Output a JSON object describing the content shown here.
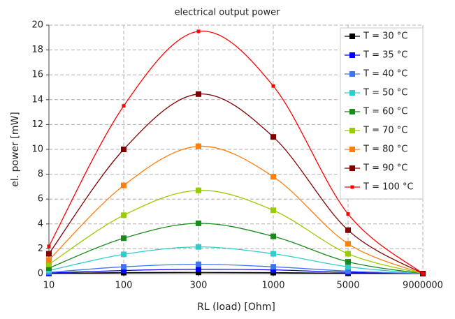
{
  "chart_data": {
    "type": "line",
    "title": "electrical output power",
    "x_label": "RL (load) [Ohm]",
    "y_label": "el. power [mW]",
    "categories": [
      "10",
      "100",
      "300",
      "1000",
      "5000",
      "9000000"
    ],
    "ylim": [
      0,
      20
    ],
    "yticks": [
      0,
      2,
      4,
      6,
      8,
      10,
      12,
      14,
      16,
      18,
      20
    ],
    "grid": true,
    "legend": "upper right",
    "series": [
      {
        "name": "T = 30 °C",
        "color": "#000000",
        "values": [
          0.02,
          0.08,
          0.1,
          0.08,
          0.03,
          0
        ]
      },
      {
        "name": "T = 35 °C",
        "color": "#0000ff",
        "values": [
          0.05,
          0.25,
          0.35,
          0.3,
          0.1,
          0
        ]
      },
      {
        "name": "T = 40 °C",
        "color": "#3f75f2",
        "values": [
          0.1,
          0.55,
          0.75,
          0.55,
          0.2,
          0
        ]
      },
      {
        "name": "T = 50 °C",
        "color": "#33cccc",
        "values": [
          0.25,
          1.55,
          2.15,
          1.6,
          0.55,
          0
        ]
      },
      {
        "name": "T = 60 °C",
        "color": "#1a8a1a",
        "values": [
          0.45,
          2.85,
          4.05,
          3.0,
          0.95,
          0
        ]
      },
      {
        "name": "T = 70 °C",
        "color": "#99cc00",
        "values": [
          0.75,
          4.7,
          6.7,
          5.1,
          1.6,
          0
        ]
      },
      {
        "name": "T = 80 °C",
        "color": "#ff7f0e",
        "values": [
          1.1,
          7.1,
          10.25,
          7.8,
          2.4,
          0
        ]
      },
      {
        "name": "T = 90 °C",
        "color": "#800000",
        "values": [
          1.6,
          10.0,
          14.45,
          11.0,
          3.5,
          0
        ]
      },
      {
        "name": "T = 100 °C",
        "color": "#ff0000",
        "values": [
          2.2,
          13.5,
          19.5,
          15.1,
          4.8,
          0
        ]
      }
    ]
  }
}
